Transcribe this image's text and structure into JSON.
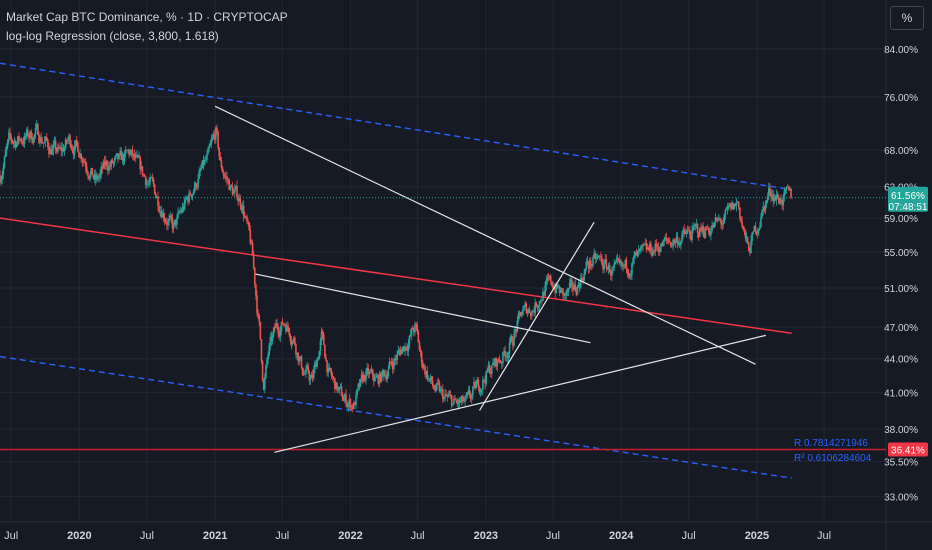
{
  "header": {
    "title": "Market Cap BTC Dominance, % · 1D · CRYPTOCAP",
    "indicator": "log-log Regression (close, 3,800, 1.618)",
    "unit_button": "%"
  },
  "colors": {
    "background": "#161a25",
    "grid": "#232733",
    "candle_up": "#26a69a",
    "candle_down": "#ef5350",
    "regression_mid": "#f23645",
    "regression_band": "#2962ff",
    "trendlines": "#e6e6e6",
    "support_line": "#c41f2d",
    "price_label_bg": "#26a69a",
    "support_label_bg": "#f23645",
    "stats_text": "#2962ff",
    "axis_text": "#d1d4dc"
  },
  "chart_data": {
    "type": "candlestick",
    "title": "Market Cap BTC Dominance, % · 1D · CRYPTOCAP",
    "y_scale": "log",
    "ylim": [
      31.3,
      93.0
    ],
    "y_ticks": [
      {
        "value": 33.0,
        "label": "33.00%"
      },
      {
        "value": 35.5,
        "label": "35.50%"
      },
      {
        "value": 38.0,
        "label": "38.00%"
      },
      {
        "value": 41.0,
        "label": "41.00%"
      },
      {
        "value": 44.0,
        "label": "44.00%"
      },
      {
        "value": 47.0,
        "label": "47.00%"
      },
      {
        "value": 51.0,
        "label": "51.00%"
      },
      {
        "value": 55.0,
        "label": "55.00%"
      },
      {
        "value": 59.0,
        "label": "59.00%"
      },
      {
        "value": 63.0,
        "label": "63.00%"
      },
      {
        "value": 68.0,
        "label": "68.00%"
      },
      {
        "value": 76.0,
        "label": "76.00%"
      },
      {
        "value": 84.0,
        "label": "84.00%"
      }
    ],
    "x_ticks": [
      {
        "date": "2019-07-01",
        "label": "Jul"
      },
      {
        "date": "2020-01-01",
        "label": "2020"
      },
      {
        "date": "2020-07-01",
        "label": "Jul"
      },
      {
        "date": "2021-01-01",
        "label": "2021"
      },
      {
        "date": "2021-07-01",
        "label": "Jul"
      },
      {
        "date": "2022-01-01",
        "label": "2022"
      },
      {
        "date": "2022-07-01",
        "label": "Jul"
      },
      {
        "date": "2023-01-01",
        "label": "2023"
      },
      {
        "date": "2023-07-01",
        "label": "Jul"
      },
      {
        "date": "2024-01-01",
        "label": "2024"
      },
      {
        "date": "2024-07-01",
        "label": "Jul"
      },
      {
        "date": "2025-01-01",
        "label": "2025"
      },
      {
        "date": "2025-07-01",
        "label": "Jul"
      }
    ],
    "x_range": [
      "2019-06-01",
      "2025-12-15"
    ],
    "close_path": [
      [
        "2019-06-01",
        64.5
      ],
      [
        "2019-06-25",
        69.0
      ],
      [
        "2019-07-20",
        69.5
      ],
      [
        "2019-08-15",
        70.0
      ],
      [
        "2019-09-10",
        70.5
      ],
      [
        "2019-10-10",
        68.5
      ],
      [
        "2019-11-10",
        67.5
      ],
      [
        "2019-12-05",
        69.5
      ],
      [
        "2020-01-10",
        67.5
      ],
      [
        "2020-02-15",
        63.5
      ],
      [
        "2020-03-15",
        66.0
      ],
      [
        "2020-04-15",
        66.0
      ],
      [
        "2020-05-15",
        67.5
      ],
      [
        "2020-06-15",
        65.0
      ],
      [
        "2020-07-15",
        63.0
      ],
      [
        "2020-08-15",
        60.0
      ],
      [
        "2020-09-10",
        57.5
      ],
      [
        "2020-10-10",
        60.5
      ],
      [
        "2020-11-15",
        64.0
      ],
      [
        "2020-12-15",
        67.0
      ],
      [
        "2021-01-03",
        70.5
      ],
      [
        "2021-01-15",
        66.0
      ],
      [
        "2021-02-15",
        62.5
      ],
      [
        "2021-03-15",
        61.0
      ],
      [
        "2021-04-10",
        55.0
      ],
      [
        "2021-04-30",
        47.0
      ],
      [
        "2021-05-12",
        41.5
      ],
      [
        "2021-05-25",
        44.5
      ],
      [
        "2021-06-15",
        47.0
      ],
      [
        "2021-07-10",
        47.5
      ],
      [
        "2021-08-01",
        46.0
      ],
      [
        "2021-08-25",
        43.0
      ],
      [
        "2021-09-20",
        42.0
      ],
      [
        "2021-10-15",
        46.0
      ],
      [
        "2021-11-05",
        42.5
      ],
      [
        "2021-12-10",
        40.5
      ],
      [
        "2022-01-10",
        40.0
      ],
      [
        "2022-02-10",
        42.5
      ],
      [
        "2022-03-15",
        42.0
      ],
      [
        "2022-04-10",
        43.0
      ],
      [
        "2022-05-12",
        44.5
      ],
      [
        "2022-06-10",
        46.0
      ],
      [
        "2022-06-25",
        47.0
      ],
      [
        "2022-07-10",
        44.0
      ],
      [
        "2022-08-10",
        41.5
      ],
      [
        "2022-09-10",
        40.5
      ],
      [
        "2022-10-10",
        40.0
      ],
      [
        "2022-11-10",
        40.0
      ],
      [
        "2022-12-10",
        41.5
      ],
      [
        "2023-01-10",
        43.0
      ],
      [
        "2023-02-10",
        44.0
      ],
      [
        "2023-03-10",
        45.5
      ],
      [
        "2023-04-10",
        48.5
      ],
      [
        "2023-05-10",
        49.0
      ],
      [
        "2023-06-10",
        51.0
      ],
      [
        "2023-07-01",
        51.5
      ],
      [
        "2023-08-01",
        50.0
      ],
      [
        "2023-09-01",
        51.0
      ],
      [
        "2023-10-01",
        53.5
      ],
      [
        "2023-11-01",
        54.0
      ],
      [
        "2023-12-01",
        53.0
      ],
      [
        "2024-01-01",
        52.5
      ],
      [
        "2024-02-01",
        54.0
      ],
      [
        "2024-03-01",
        54.5
      ],
      [
        "2024-04-01",
        55.5
      ],
      [
        "2024-05-01",
        56.0
      ],
      [
        "2024-06-01",
        56.5
      ],
      [
        "2024-07-01",
        57.0
      ],
      [
        "2024-08-01",
        57.5
      ],
      [
        "2024-09-01",
        58.0
      ],
      [
        "2024-10-01",
        58.5
      ],
      [
        "2024-11-10",
        61.0
      ],
      [
        "2024-12-08",
        55.0
      ],
      [
        "2025-01-01",
        58.0
      ],
      [
        "2025-01-25",
        61.0
      ],
      [
        "2025-02-05",
        62.5
      ],
      [
        "2025-03-01",
        61.5
      ],
      [
        "2025-04-05",
        61.56
      ]
    ],
    "last_value": 61.56,
    "last_value_label": "61.56%",
    "countdown_label": "07:48:51",
    "regression": {
      "mid": [
        [
          "2019-06-01",
          59.0
        ],
        [
          "2025-04-05",
          46.4
        ]
      ],
      "upper": [
        [
          "2019-06-01",
          81.5
        ],
        [
          "2025-04-05",
          62.6
        ]
      ],
      "lower": [
        [
          "2019-06-01",
          44.2
        ],
        [
          "2025-04-05",
          34.3
        ]
      ],
      "r_label": "R 0.7814271946",
      "r2_label": "R² 0.6106284604"
    },
    "trendlines": [
      [
        [
          "2021-01-01",
          74.5
        ],
        [
          "2024-12-28",
          43.5
        ]
      ],
      [
        [
          "2021-04-20",
          52.5
        ],
        [
          "2023-10-10",
          45.5
        ]
      ],
      [
        [
          "2021-06-10",
          36.2
        ],
        [
          "2025-01-25",
          46.2
        ]
      ],
      [
        [
          "2022-12-15",
          39.5
        ],
        [
          "2023-10-20",
          58.5
        ]
      ]
    ],
    "support_level": {
      "value": 36.41,
      "label": "36.41%"
    }
  }
}
